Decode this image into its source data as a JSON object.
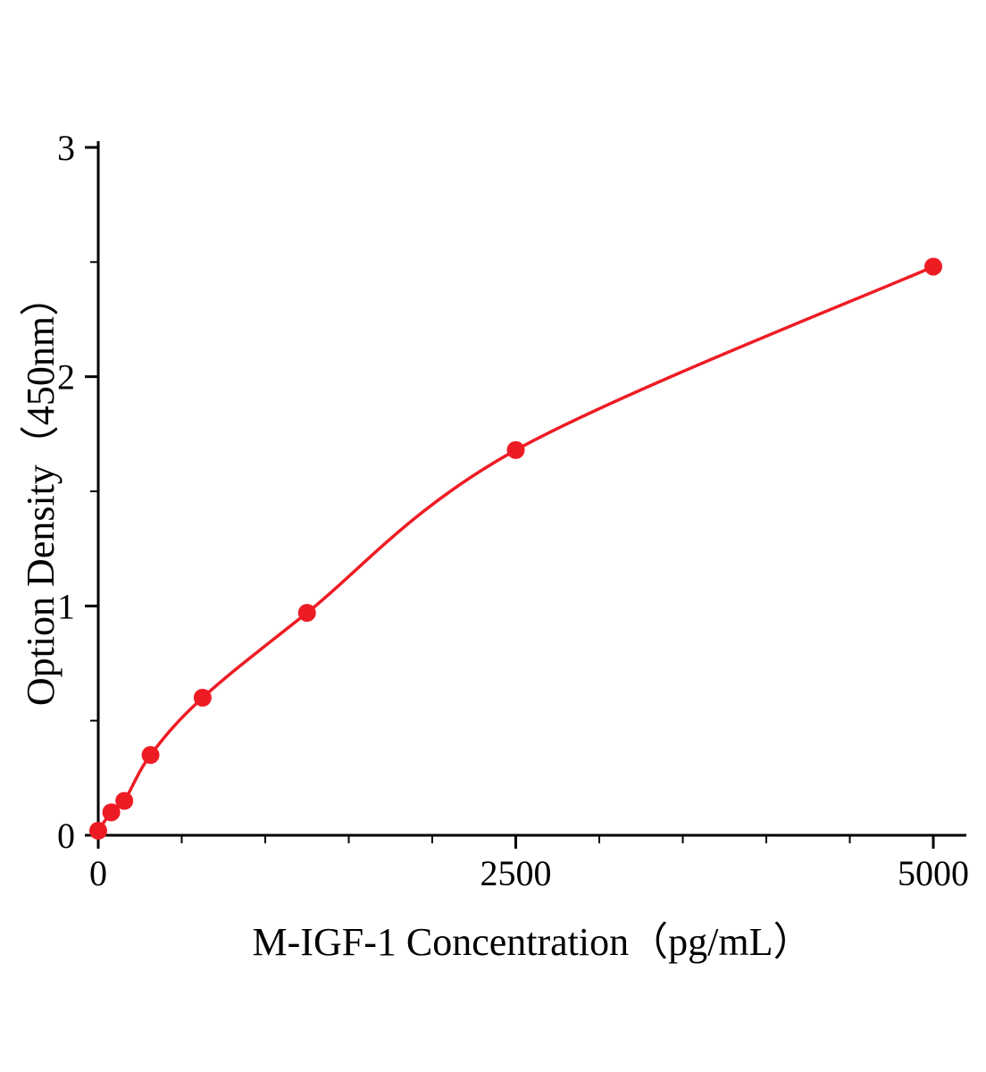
{
  "chart_data": {
    "type": "scatter",
    "title": "",
    "xlabel": "M-IGF-1 Concentration（pg/mL）",
    "ylabel": "Option Density（450nm）",
    "xlim": [
      0,
      5000
    ],
    "ylim": [
      0,
      3
    ],
    "grid": false,
    "legend": "none",
    "series_color": "#ed1c24",
    "axis_color": "#000000",
    "x_ticks": [
      {
        "value": 0,
        "label": "0"
      },
      {
        "value": 2500,
        "label": "2500"
      },
      {
        "value": 5000,
        "label": "5000"
      }
    ],
    "x_minor_ticks": [
      500,
      1000,
      1500,
      2000,
      3000,
      3500,
      4000,
      4500
    ],
    "y_ticks": [
      {
        "value": 0,
        "label": "0"
      },
      {
        "value": 1,
        "label": "1"
      },
      {
        "value": 2,
        "label": "2"
      },
      {
        "value": 3,
        "label": "3"
      }
    ],
    "y_minor_ticks": [
      0.5,
      1.5,
      2.5
    ],
    "points": [
      {
        "x": 0,
        "y": 0.02
      },
      {
        "x": 78,
        "y": 0.1
      },
      {
        "x": 156,
        "y": 0.15
      },
      {
        "x": 313,
        "y": 0.35
      },
      {
        "x": 625,
        "y": 0.6
      },
      {
        "x": 1250,
        "y": 0.97
      },
      {
        "x": 2500,
        "y": 1.68
      },
      {
        "x": 5000,
        "y": 2.48
      }
    ]
  }
}
